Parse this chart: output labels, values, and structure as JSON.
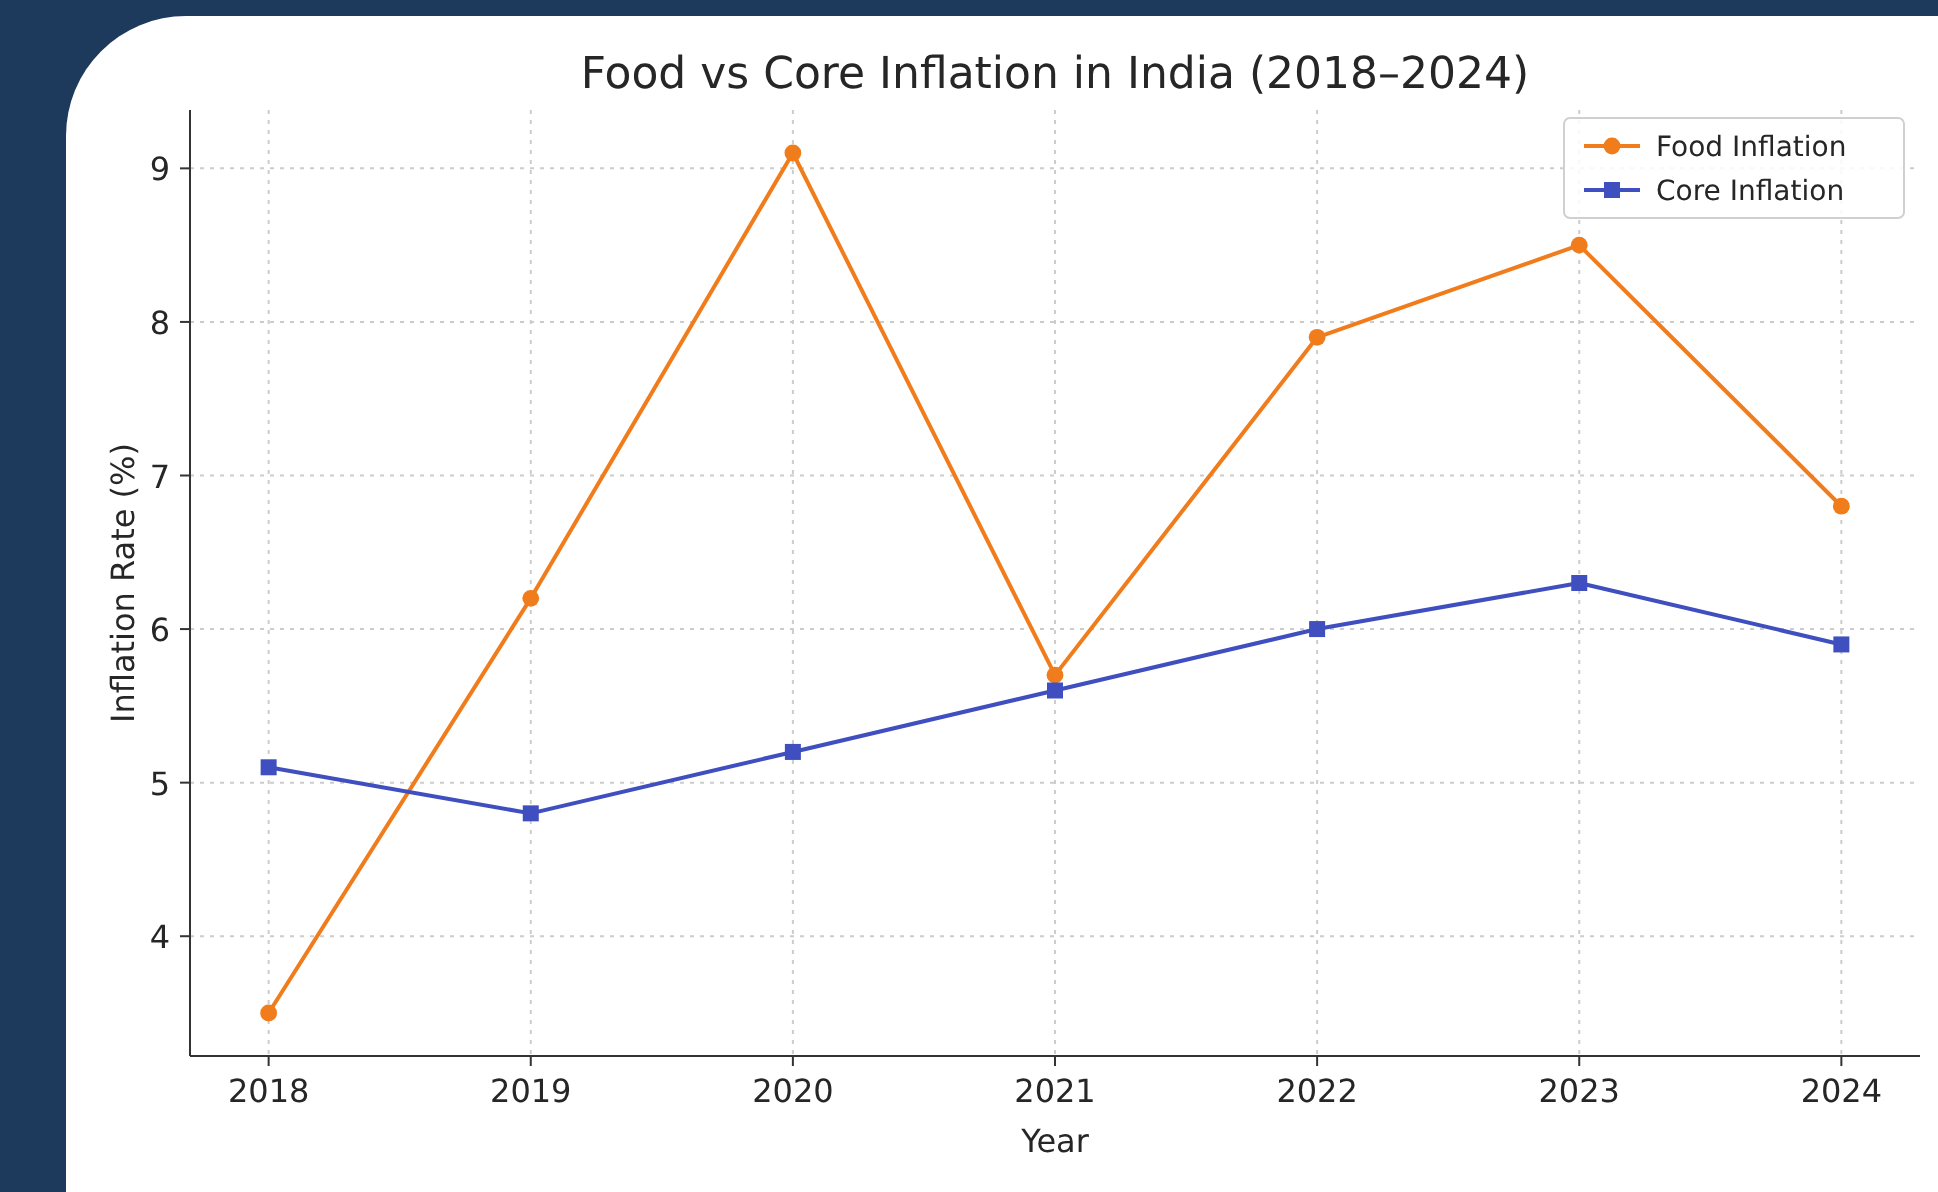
{
  "chart_data": {
    "type": "line",
    "title": "Food vs Core Inflation in India (2018–2024)",
    "xlabel": "Year",
    "ylabel": "Inflation Rate (%)",
    "x": [
      2018,
      2019,
      2020,
      2021,
      2022,
      2023,
      2024
    ],
    "series": [
      {
        "name": "Food Inflation",
        "color": "#f07c1c",
        "marker": "circle",
        "values": [
          3.5,
          6.2,
          9.1,
          5.7,
          7.9,
          8.5,
          6.8
        ]
      },
      {
        "name": "Core Inflation",
        "color": "#3f4fbf",
        "marker": "square",
        "values": [
          5.1,
          4.8,
          5.2,
          5.6,
          6.0,
          6.3,
          5.9
        ]
      }
    ],
    "xlim": [
      2017.7,
      2024.3
    ],
    "xticks": [
      2018,
      2019,
      2020,
      2021,
      2022,
      2023,
      2024
    ],
    "ylim": [
      3.22,
      9.38
    ],
    "yticks": [
      4,
      5,
      6,
      7,
      8,
      9
    ],
    "grid": true,
    "legend": "top right",
    "line_style": "solid"
  }
}
